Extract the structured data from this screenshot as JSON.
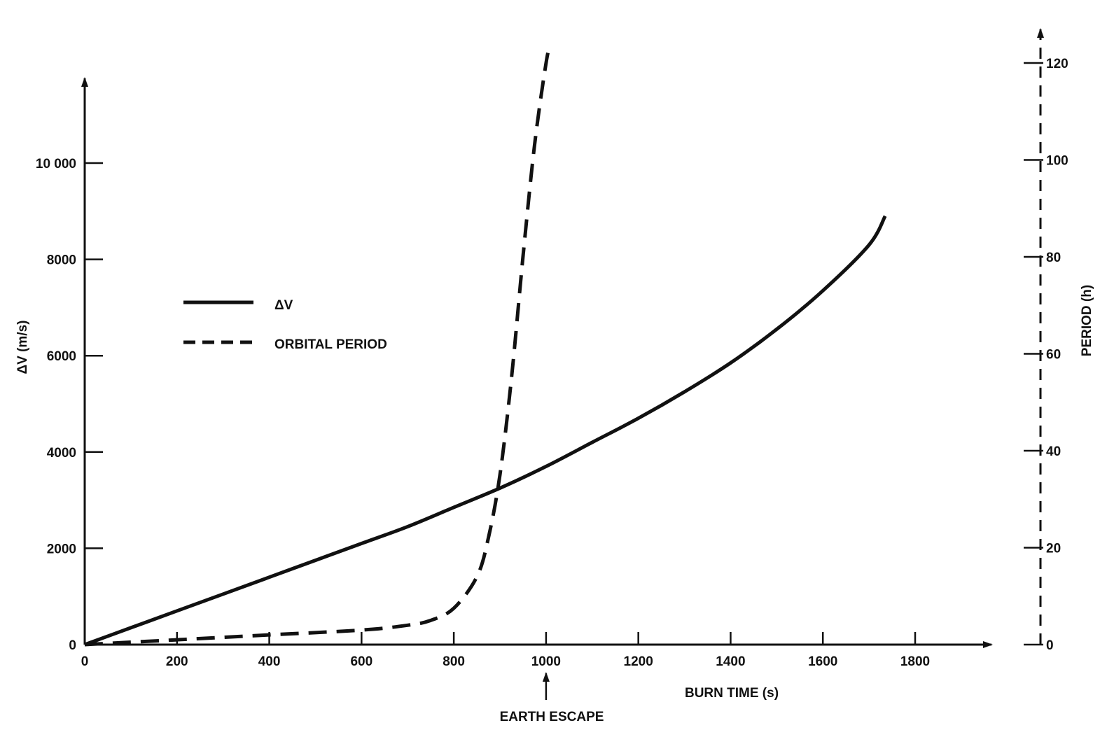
{
  "chart_data": {
    "type": "line",
    "title": "",
    "xlabel": "BURN TIME (s)",
    "ylabel": "ΔV (m/s)",
    "ylabel_right": "PERIOD (h)",
    "xlim": [
      0,
      1950
    ],
    "ylim": [
      0,
      11500
    ],
    "ylim_right": [
      0,
      121
    ],
    "x_ticks": [
      0,
      200,
      400,
      600,
      800,
      1000,
      1200,
      1400,
      1600,
      1800
    ],
    "x_tick_labels": [
      "0",
      "200",
      "400",
      "600",
      "800",
      "1000",
      "1200",
      "1400",
      "1600",
      "1800"
    ],
    "y_ticks": [
      0,
      2000,
      4000,
      6000,
      8000,
      10000
    ],
    "y_tick_labels": [
      "0",
      "2000",
      "4000",
      "6000",
      "8000",
      "10 000"
    ],
    "y_right_ticks": [
      0,
      20,
      40,
      60,
      80,
      100,
      120
    ],
    "y_right_tick_labels": [
      "0",
      "20",
      "40",
      "60",
      "80",
      "100",
      "120"
    ],
    "annotation": {
      "text": "EARTH ESCAPE",
      "x": 1000
    },
    "legend_position": "upper-left",
    "grid": false,
    "series": [
      {
        "name": "ΔV",
        "axis": "left",
        "style": "solid",
        "x": [
          0,
          100,
          200,
          300,
          400,
          500,
          600,
          700,
          800,
          900,
          1000,
          1100,
          1200,
          1300,
          1400,
          1500,
          1600,
          1700,
          1735
        ],
        "values": [
          0,
          350,
          700,
          1050,
          1400,
          1750,
          2100,
          2450,
          2850,
          3250,
          3700,
          4200,
          4700,
          5250,
          5850,
          6550,
          7350,
          8300,
          8900
        ]
      },
      {
        "name": "ORBITAL PERIOD",
        "axis": "right",
        "style": "dashed",
        "x": [
          0,
          200,
          400,
          600,
          700,
          750,
          800,
          850,
          875,
          900,
          925,
          950,
          975,
          1000,
          1010
        ],
        "values": [
          0,
          1,
          2,
          3,
          4,
          5,
          7.5,
          14,
          22,
          35,
          55,
          80,
          103,
          120,
          124
        ]
      }
    ]
  }
}
